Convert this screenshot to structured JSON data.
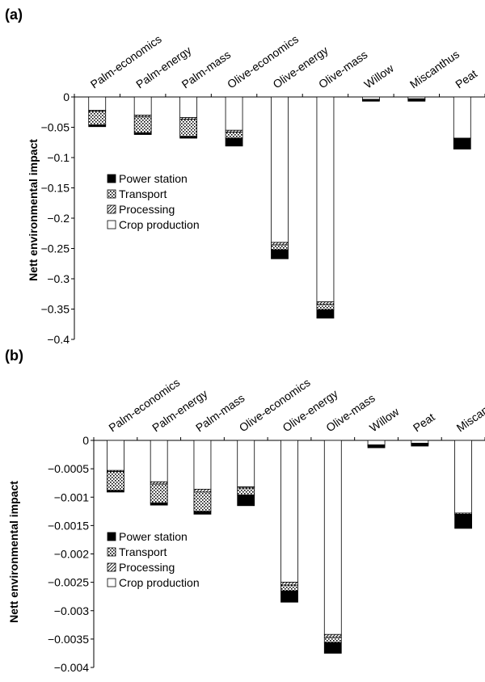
{
  "chart_data": [
    {
      "panel_label": "(a)",
      "type": "bar",
      "stacked": true,
      "ylabel": "Nett environmental impact",
      "ylim": [
        -0.4,
        0
      ],
      "yticks": [
        0,
        -0.05,
        -0.1,
        -0.15,
        -0.2,
        -0.25,
        -0.3,
        -0.35,
        -0.4
      ],
      "ytick_labels": [
        "0",
        "−0.05",
        "−0.1",
        "−0.15",
        "−0.2",
        "−0.25",
        "−0.3",
        "−0.35",
        "−0.4"
      ],
      "categories": [
        "Palm-economics",
        "Palm-energy",
        "Palm-mass",
        "Olive-economics",
        "Olive-energy",
        "Olive-mass",
        "Willow",
        "Miscanthus",
        "Peat"
      ],
      "legend": [
        "Power station",
        "Transport",
        "Processing",
        "Crop production"
      ],
      "legend_placement": "lower-left",
      "series": [
        {
          "name": "Crop production",
          "values": [
            -0.022,
            -0.03,
            -0.034,
            -0.055,
            -0.24,
            -0.338,
            -0.004,
            -0.003,
            -0.068
          ]
        },
        {
          "name": "Processing",
          "values": [
            -0.002,
            -0.003,
            -0.003,
            -0.003,
            -0.004,
            -0.004,
            -0.001,
            -0.001,
            0.0
          ]
        },
        {
          "name": "Transport",
          "values": [
            -0.022,
            -0.026,
            -0.028,
            -0.01,
            -0.008,
            -0.009,
            -0.001,
            -0.001,
            0.0
          ]
        },
        {
          "name": "Power station",
          "values": [
            -0.003,
            -0.003,
            -0.003,
            -0.013,
            -0.015,
            -0.014,
            -0.001,
            -0.002,
            -0.018
          ]
        }
      ]
    },
    {
      "panel_label": "(b)",
      "type": "bar",
      "stacked": true,
      "ylabel": "Nett environmental impact",
      "ylim": [
        -0.004,
        0
      ],
      "yticks": [
        0,
        -0.0005,
        -0.001,
        -0.0015,
        -0.002,
        -0.0025,
        -0.003,
        -0.0035,
        -0.004
      ],
      "ytick_labels": [
        "0",
        "−0.0005",
        "−0.001",
        "−0.0015",
        "−0.002",
        "−0.0025",
        "−0.003",
        "−0.0035",
        "−0.004"
      ],
      "categories": [
        "Palm-economics",
        "Palm-energy",
        "Palm-mass",
        "Olive-economics",
        "Olive-energy",
        "Olive-mass",
        "Willow",
        "Peat",
        "Miscanthus"
      ],
      "legend": [
        "Power station",
        "Transport",
        "Processing",
        "Crop production"
      ],
      "legend_placement": "lower-left",
      "series": [
        {
          "name": "Crop production",
          "values": [
            -0.00053,
            -0.00073,
            -0.00086,
            -0.00082,
            -0.0025,
            -0.00342,
            -8e-05,
            -5e-05,
            -0.00128
          ]
        },
        {
          "name": "Processing",
          "values": [
            -2e-05,
            -4e-05,
            -5e-05,
            -2e-05,
            -5e-05,
            -5e-05,
            -1e-05,
            -1e-05,
            -2e-05
          ]
        },
        {
          "name": "Transport",
          "values": [
            -0.00033,
            -0.00033,
            -0.00034,
            -0.00012,
            -0.0001,
            -9e-05,
            -1e-05,
            -1e-05,
            -1e-05
          ]
        },
        {
          "name": "Power station",
          "values": [
            -3e-05,
            -4e-05,
            -5e-05,
            -0.00019,
            -0.0002,
            -0.00019,
            -3e-05,
            -3e-05,
            -0.00024
          ]
        }
      ]
    }
  ]
}
